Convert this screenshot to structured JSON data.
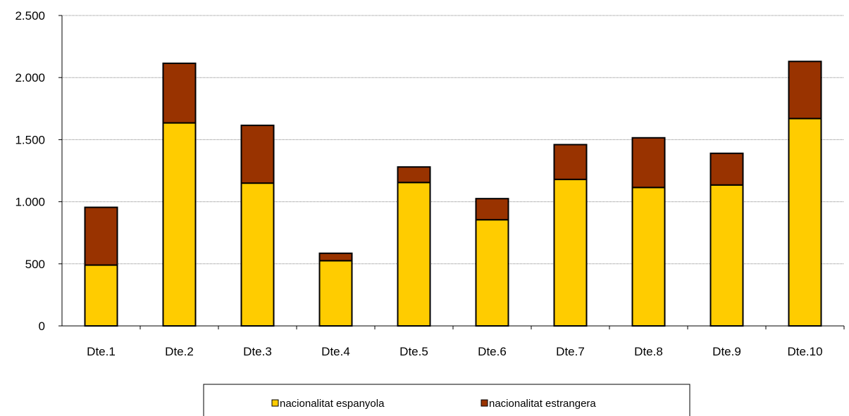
{
  "chart_data": {
    "type": "bar",
    "stacked": true,
    "categories": [
      "Dte.1",
      "Dte.2",
      "Dte.3",
      "Dte.4",
      "Dte.5",
      "Dte.6",
      "Dte.7",
      "Dte.8",
      "Dte.9",
      "Dte.10"
    ],
    "series": [
      {
        "name": "nacionalitat espanyola",
        "color": "#FFCC00",
        "values": [
          490,
          1635,
          1150,
          525,
          1155,
          855,
          1180,
          1115,
          1135,
          1670
        ]
      },
      {
        "name": "nacionalitat estrangera",
        "color": "#993300",
        "values": [
          465,
          480,
          465,
          60,
          125,
          170,
          280,
          400,
          255,
          460
        ]
      }
    ],
    "yticks": [
      0,
      500,
      1000,
      1500,
      2000,
      2500
    ],
    "ytick_labels": [
      "0",
      "500",
      "1.000",
      "1.500",
      "2.000",
      "2.500"
    ],
    "ylim": [
      0,
      2500
    ],
    "grid": true,
    "legend_position": "bottom",
    "title": "",
    "xlabel": "",
    "ylabel": ""
  }
}
